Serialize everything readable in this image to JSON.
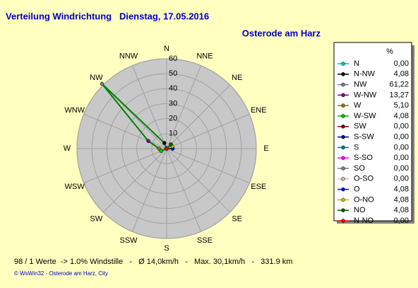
{
  "title": "Verteilung Windrichtung   Dienstag, 17.05.2016",
  "subtitle": "Osterode am Harz",
  "chart_data": {
    "type": "radar",
    "categories": [
      "N",
      "NNE",
      "NE",
      "ENE",
      "E",
      "ESE",
      "SE",
      "SSE",
      "S",
      "SSW",
      "SW",
      "WSW",
      "W",
      "WNW",
      "NW",
      "NNW"
    ],
    "rlim": [
      0,
      60
    ],
    "rticks": [
      0,
      10,
      20,
      30,
      40,
      50,
      60
    ],
    "line_color": "#008000",
    "legend": {
      "title": "%",
      "series": [
        {
          "name": "N",
          "color": "#00c0c0",
          "values": [
            0
          ],
          "value_labels": [
            "0,00"
          ]
        },
        {
          "name": "N-NW",
          "color": "#000000",
          "values": [
            4.08
          ],
          "value_labels": [
            "4,08"
          ]
        },
        {
          "name": "NW",
          "color": "#808080",
          "values": [
            61.22
          ],
          "value_labels": [
            "61,22"
          ]
        },
        {
          "name": "W-NW",
          "color": "#800080",
          "values": [
            13.27
          ],
          "value_labels": [
            "13,27"
          ]
        },
        {
          "name": "W",
          "color": "#808000",
          "values": [
            5.1
          ],
          "value_labels": [
            "5,10"
          ]
        },
        {
          "name": "W-SW",
          "color": "#00c000",
          "values": [
            4.08
          ],
          "value_labels": [
            "4,08"
          ]
        },
        {
          "name": "SW",
          "color": "#800000",
          "values": [
            0
          ],
          "value_labels": [
            "0,00"
          ]
        },
        {
          "name": "S-SW",
          "color": "#000080",
          "values": [
            0
          ],
          "value_labels": [
            "0,00"
          ]
        },
        {
          "name": "S",
          "color": "#008080",
          "values": [
            0
          ],
          "value_labels": [
            "0,00"
          ]
        },
        {
          "name": "S-SO",
          "color": "#ff00ff",
          "values": [
            0
          ],
          "value_labels": [
            "0,00"
          ]
        },
        {
          "name": "SO",
          "color": "#808080",
          "values": [
            0
          ],
          "value_labels": [
            "0,00"
          ]
        },
        {
          "name": "O-SO",
          "color": "#c0c0c0",
          "values": [
            0
          ],
          "value_labels": [
            "0,00"
          ]
        },
        {
          "name": "O",
          "color": "#0000ff",
          "values": [
            4.08
          ],
          "value_labels": [
            "4,08"
          ]
        },
        {
          "name": "O-NO",
          "color": "#c0c000",
          "values": [
            4.08
          ],
          "value_labels": [
            "4,08"
          ]
        },
        {
          "name": "NO",
          "color": "#006000",
          "values": [
            4.08
          ],
          "value_labels": [
            "4,08"
          ]
        },
        {
          "name": "N-NO",
          "color": "#ff0000",
          "values": [
            0
          ],
          "value_labels": [
            "0,00"
          ]
        }
      ]
    }
  },
  "footer": "98 / 1 Werte  -> 1.0% Windstille   -   Ø 14,0km/h   -   Max. 30,1km/h   -   331.9 km",
  "copyright": "© WsWin32  -  Osterode am Harz, City"
}
